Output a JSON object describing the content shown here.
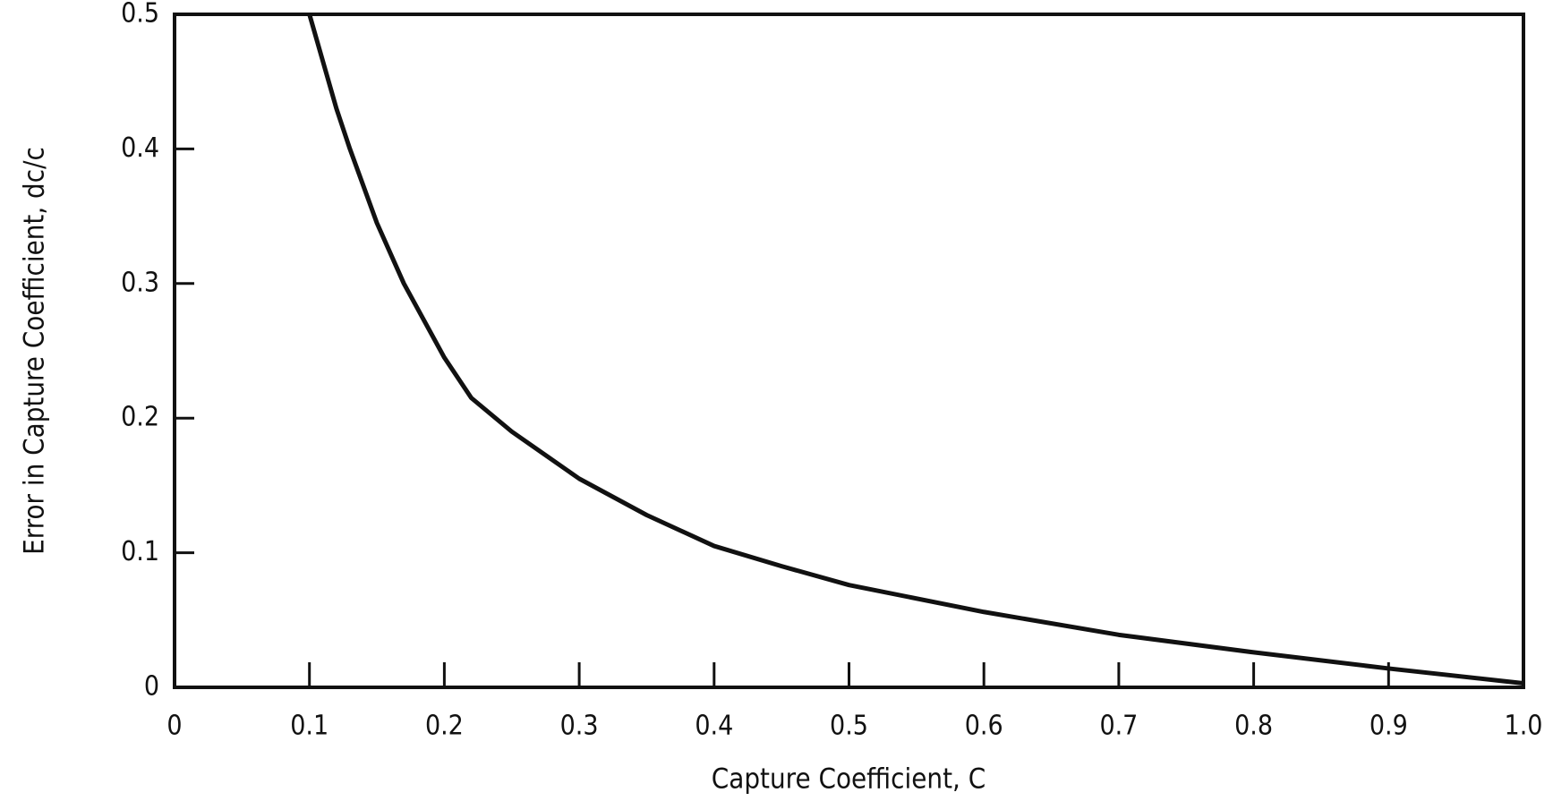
{
  "chart_data": {
    "type": "line",
    "x_label": "Capture Coefficient, C",
    "y_label": "Error in Capture Coefficient, dc/c",
    "x": [
      0.1,
      0.11,
      0.12,
      0.13,
      0.15,
      0.17,
      0.2,
      0.22,
      0.25,
      0.3,
      0.35,
      0.4,
      0.45,
      0.5,
      0.6,
      0.7,
      0.8,
      0.9,
      1.0
    ],
    "series": [
      {
        "color": "#111111",
        "values": [
          0.5,
          0.465,
          0.43,
          0.4,
          0.345,
          0.3,
          0.245,
          0.215,
          0.19,
          0.155,
          0.128,
          0.105,
          0.09,
          0.076,
          0.056,
          0.039,
          0.026,
          0.014,
          0.003
        ]
      }
    ],
    "xlim": [
      0,
      1
    ],
    "ylim": [
      0,
      0.5
    ],
    "xticks": [
      0,
      0.1,
      0.2,
      0.3,
      0.4,
      0.5,
      0.6,
      0.7,
      0.8,
      0.9,
      {
        "value": 1,
        "label": "1.0"
      }
    ],
    "yticks": [
      0,
      0.1,
      0.2,
      0.3,
      0.4,
      0.5
    ]
  }
}
